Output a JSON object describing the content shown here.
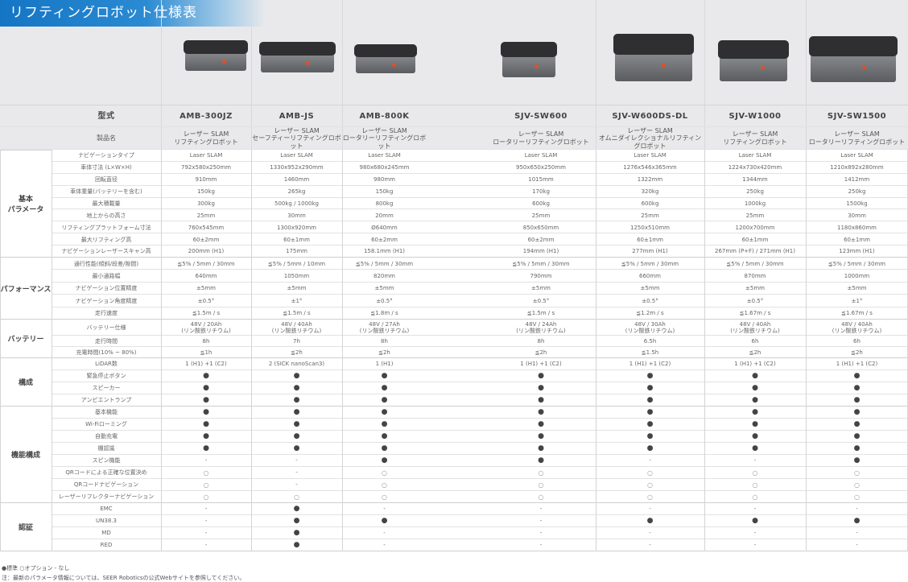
{
  "title": "リフティングロボット仕様表",
  "header_labels": {
    "model": "型式",
    "product_name": "製品名"
  },
  "products": [
    {
      "model": "AMB-300JZ",
      "name": [
        "レーザー SLAM",
        "リフティングロボット"
      ]
    },
    {
      "model": "AMB-JS",
      "name": [
        "レーザー SLAM",
        "セーフティーリフティングロボット"
      ]
    },
    {
      "model": "AMB-800K",
      "name": [
        "レーザー SLAM",
        "ロータリーリフティングロボット"
      ]
    },
    {
      "model": "SJV-SW600",
      "name": [
        "レーザー SLAM",
        "ロータリーリフティングロボット"
      ]
    },
    {
      "model": "SJV-W600DS-DL",
      "name": [
        "レーザー SLAM",
        "オムニダイレクショナルリフティングロボット"
      ]
    },
    {
      "model": "SJV-W1000",
      "name": [
        "レーザー SLAM",
        "リフティングロボット"
      ]
    },
    {
      "model": "SJV-SW1500",
      "name": [
        "レーザー SLAM",
        "ロータリーリフティングロボット"
      ]
    }
  ],
  "sections": [
    {
      "label": "基本\nパラメータ",
      "rows": [
        {
          "label": "ナビゲーションタイプ",
          "values": [
            "Laser SLAM",
            "Laser SLAM",
            "Laser SLAM",
            "Laser SLAM",
            "Laser SLAM",
            "Laser SLAM",
            "Laser SLAM"
          ]
        },
        {
          "label": "車体寸法 (L×W×H)",
          "values": [
            "792x580x250mm",
            "1330x952x290mm",
            "980x680x245mm",
            "950x650x250mm",
            "1276x546x365mm",
            "1224x730x420mm",
            "1210x892x280mm"
          ]
        },
        {
          "label": "回転直径",
          "values": [
            "910mm",
            "1460mm",
            "980mm",
            "1015mm",
            "1322mm",
            "1344mm",
            "1412mm"
          ]
        },
        {
          "label": "車体重量(バッテリーを含む)",
          "values": [
            "150kg",
            "265kg",
            "150kg",
            "170kg",
            "320kg",
            "250kg",
            "250kg"
          ]
        },
        {
          "label": "最大積載量",
          "values": [
            "300kg",
            "500kg / 1000kg",
            "800kg",
            "600kg",
            "600kg",
            "1000kg",
            "1500kg"
          ]
        },
        {
          "label": "地上からの高さ",
          "values": [
            "25mm",
            "30mm",
            "20mm",
            "25mm",
            "25mm",
            "25mm",
            "30mm"
          ]
        },
        {
          "label": "リフティングプラットフォーム寸法",
          "values": [
            "760x545mm",
            "1300x920mm",
            "Ø640mm",
            "850x650mm",
            "1250x510mm",
            "1200x700mm",
            "1180x860mm"
          ]
        },
        {
          "label": "最大リフティング高",
          "values": [
            "60±2mm",
            "60±1mm",
            "60±2mm",
            "60±2mm",
            "60±1mm",
            "60±1mm",
            "60±1mm"
          ]
        },
        {
          "label": "ナビゲーションレーザースキャン高",
          "values": [
            "200mm (H1)",
            "175mm",
            "158.1mm (H1)",
            "194mm (H1)",
            "277mm (H1)",
            "267mm (P+F) / 271mm (H1)",
            "123mm (H1)"
          ]
        }
      ]
    },
    {
      "label": "パフォーマンス",
      "rows": [
        {
          "label": "通行性能(傾斜/段差/隙間)",
          "values": [
            "≦5% / 5mm / 30mm",
            "≦5% / 5mm / 10mm",
            "≦5% / 5mm / 30mm",
            "≦5% / 5mm / 30mm",
            "≦5% / 5mm / 30mm",
            "≦5% / 5mm / 30mm",
            "≦5% / 5mm / 30mm"
          ]
        },
        {
          "label": "最小通路幅",
          "values": [
            "640mm",
            "1050mm",
            "820mm",
            "790mm",
            "660mm",
            "870mm",
            "1000mm"
          ]
        },
        {
          "label": "ナビゲーション位置精度",
          "values": [
            "±5mm",
            "±5mm",
            "±5mm",
            "±5mm",
            "±5mm",
            "±5mm",
            "±5mm"
          ]
        },
        {
          "label": "ナビゲーション角度精度",
          "values": [
            "±0.5°",
            "±1°",
            "±0.5°",
            "±0.5°",
            "±0.5°",
            "±0.5°",
            "±1°"
          ]
        },
        {
          "label": "走行速度",
          "values": [
            "≦1.5m / s",
            "≦1.5m / s",
            "≦1.8m / s",
            "≦1.5m / s",
            "≦1.2m / s",
            "≦1.67m / s",
            "≦1.67m / s"
          ]
        }
      ]
    },
    {
      "label": "バッテリー",
      "rows": [
        {
          "label": "バッテリー仕様",
          "tall": true,
          "values": [
            "48V / 20Ah\n(リン酸鉄リチウム)",
            "48V / 40Ah\n(リン酸鉄リチウム)",
            "48V / 27Ah\n(リン酸鉄リチウム)",
            "48V / 24Ah\n(リン酸鉄リチウム)",
            "48V / 30Ah\n(リン酸鉄リチウム)",
            "48V / 40Ah\n(リン酸鉄リチウム)",
            "48V / 40Ah\n(リン酸鉄リチウム)"
          ]
        },
        {
          "label": "走行時間",
          "values": [
            "8h",
            "7h",
            "8h",
            "8h",
            "6.5h",
            "6h",
            "6h"
          ]
        },
        {
          "label": "充電時間(10% ~ 80%)",
          "values": [
            "≦1h",
            "≦2h",
            "≦2h",
            "≦2h",
            "≦1.5h",
            "≦2h",
            "≦2h"
          ]
        }
      ]
    },
    {
      "label": "構成",
      "rows": [
        {
          "label": "LiDAR数",
          "values": [
            "1 (H1) +1 (C2)",
            "2 (SICK nanoScan3)",
            "1 (H1)",
            "1 (H1) +1 (C2)",
            "1 (H1) +1 (C2)",
            "1 (H1) +1 (C2)",
            "1 (H1) +1 (C2)"
          ]
        },
        {
          "label": "緊急停止ボタン",
          "values": [
            "●",
            "●",
            "●",
            "●",
            "●",
            "●",
            "●"
          ]
        },
        {
          "label": "スピーカー",
          "values": [
            "●",
            "●",
            "●",
            "●",
            "●",
            "●",
            "●"
          ]
        },
        {
          "label": "アンビエントランプ",
          "values": [
            "●",
            "●",
            "●",
            "●",
            "●",
            "●",
            "●"
          ]
        }
      ]
    },
    {
      "label": "機能構成",
      "rows": [
        {
          "label": "基本機能",
          "values": [
            "●",
            "●",
            "●",
            "●",
            "●",
            "●",
            "●"
          ]
        },
        {
          "label": "Wi-Fiローミング",
          "values": [
            "●",
            "●",
            "●",
            "●",
            "●",
            "●",
            "●"
          ]
        },
        {
          "label": "自動充電",
          "values": [
            "●",
            "●",
            "●",
            "●",
            "●",
            "●",
            "●"
          ]
        },
        {
          "label": "棚認識",
          "values": [
            "●",
            "●",
            "●",
            "●",
            "●",
            "●",
            "●"
          ]
        },
        {
          "label": "スピン機能",
          "values": [
            "-",
            "-",
            "●",
            "●",
            "-",
            "-",
            "●"
          ]
        },
        {
          "label": "QRコードによる正確な位置決め",
          "values": [
            "○",
            "-",
            "○",
            "○",
            "○",
            "○",
            "○"
          ]
        },
        {
          "label": "QRコードナビゲーション",
          "values": [
            "○",
            "-",
            "○",
            "○",
            "○",
            "○",
            "○"
          ]
        },
        {
          "label": "レーザーリフレクターナビゲーション",
          "values": [
            "○",
            "○",
            "○",
            "○",
            "○",
            "○",
            "○"
          ]
        }
      ]
    },
    {
      "label": "認証",
      "rows": [
        {
          "label": "EMC",
          "values": [
            "-",
            "●",
            "-",
            "-",
            "-",
            "-",
            "-"
          ]
        },
        {
          "label": "UN38.3",
          "values": [
            "-",
            "●",
            "●",
            "-",
            "●",
            "●",
            "●"
          ]
        },
        {
          "label": "MD",
          "values": [
            "-",
            "●",
            "-",
            "-",
            "-",
            "-",
            "-"
          ]
        },
        {
          "label": "RED",
          "values": [
            "-",
            "●",
            "-",
            "-",
            "-",
            "-",
            "-"
          ]
        }
      ]
    }
  ],
  "legend": "●標準  ○オプション  - なし",
  "note": "注：最新のパラメータ情報については、SEER Roboticsの公式Webサイトを参照してください。",
  "colors": {
    "title_bar": "#1475c4",
    "header_bg": "#e9e9eb",
    "dot": "#444444"
  }
}
